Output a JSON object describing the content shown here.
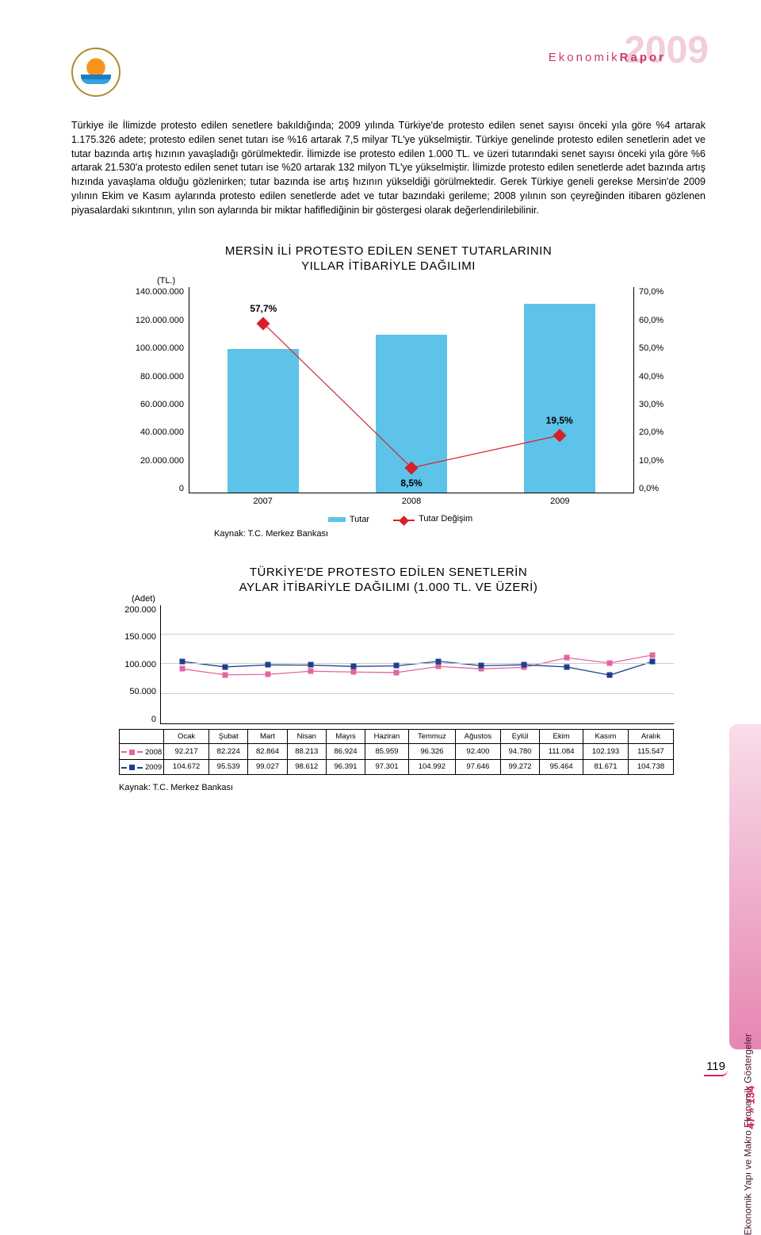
{
  "header": {
    "title_light": "Ekonomik",
    "title_bold": "Rapor",
    "year": "2009"
  },
  "paragraph": "Türkiye ile İlimizde protesto edilen senetlere bakıldığında; 2009 yılında Türkiye'de protesto edilen senet sayısı önceki yıla göre %4 artarak 1.175.326 adete; protesto edilen senet tutarı ise %16 artarak 7,5 milyar TL'ye yükselmiştir. Türkiye genelinde protesto edilen senetlerin adet ve tutar bazında artış hızının yavaşladığı görülmektedir. İlimizde ise protesto edilen 1.000 TL. ve üzeri tutarındaki senet sayısı önceki yıla göre %6 artarak 21.530'a protesto edilen senet tutarı ise %20 artarak 132 milyon TL'ye yükselmiştir. İlimizde protesto edilen senetlerde adet bazında artış hızında yavaşlama olduğu gözlenirken; tutar bazında ise artış hızının yükseldiği görülmektedir. Gerek Türkiye geneli gerekse Mersin'de 2009 yılının Ekim ve Kasım aylarında protesto edilen senetlerde adet ve tutar bazındaki gerileme; 2008 yılının son çeyreğinden itibaren gözlenen piyasalardaki sıkıntının, yılın son aylarında bir miktar hafiflediğinin bir göstergesi olarak değerlendirilebilinir.",
  "chart1": {
    "title_l1": "MERSİN İLİ PROTESTO EDİLEN SENET TUTARLARININ",
    "title_l2": "YILLAR İTİBARİYLE DAĞILIMI",
    "unit": "(TL.)",
    "y_left": [
      "140.000.000",
      "120.000.000",
      "100.000.000",
      "80.000.000",
      "60.000.000",
      "40.000.000",
      "20.000.000",
      "0"
    ],
    "y_right": [
      "70,0%",
      "60,0%",
      "50,0%",
      "40,0%",
      "30,0%",
      "20,0%",
      "10,0%",
      "0,0%"
    ],
    "categories": [
      "2007",
      "2008",
      "2009"
    ],
    "bar_values_pct_of_ymax": [
      70,
      77,
      92
    ],
    "bar_color": "#5dc3e8",
    "line_points_pct_of_ymax": [
      82.4,
      12.1,
      27.8
    ],
    "point_labels": [
      "57,7%",
      "8,5%",
      "19,5%"
    ],
    "line_color": "#d62129",
    "legend": {
      "bar": "Tutar",
      "line": "Tutar Değişim"
    },
    "source": "Kaynak: T.C. Merkez Bankası"
  },
  "chart2": {
    "title_l1": "TÜRKİYE'DE PROTESTO EDİLEN SENETLERİN",
    "title_l2": "AYLAR İTİBARİYLE DAĞILIMI (1.000 TL. VE ÜZERİ)",
    "unit": "(Adet)",
    "y_ticks": [
      "200.000",
      "150.000",
      "100.000",
      "50.000",
      "0"
    ],
    "ymax": 200000,
    "months": [
      "Ocak",
      "Şubat",
      "Mart",
      "Nisan",
      "Mayıs",
      "Haziran",
      "Temmuz",
      "Ağustos",
      "Eylül",
      "Ekim",
      "Kasım",
      "Aralık"
    ],
    "series": [
      {
        "year": "2008",
        "color": "#e465a0",
        "values": [
          92217,
          82224,
          82864,
          88213,
          86924,
          85959,
          96326,
          92400,
          94780,
          111084,
          102193,
          115547
        ]
      },
      {
        "year": "2009",
        "color": "#1f3e8c",
        "values": [
          104672,
          95539,
          99027,
          98612,
          96391,
          97301,
          104992,
          97646,
          99272,
          95464,
          81671,
          104738
        ]
      }
    ],
    "source": "Kaynak: T.C. Merkez Bankası"
  },
  "side": {
    "section": "Ekonomik Yapı ve Makro Ekonomik Göstergeler",
    "range": "47 » 134"
  },
  "page_number": "119"
}
